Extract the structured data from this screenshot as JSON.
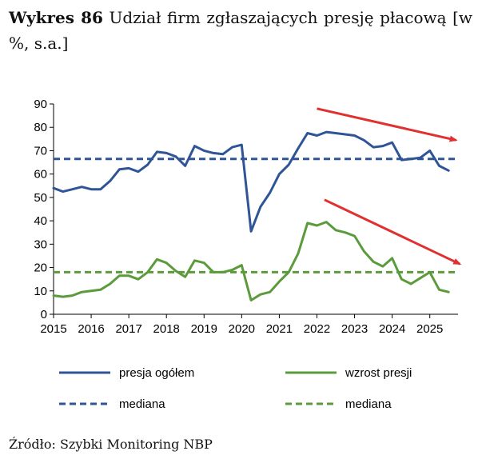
{
  "title": {
    "label": "Wykres 86",
    "text": "Udział firm zgłaszających presję płacową [w %, s.a.]"
  },
  "source": "Źródło: Szybki Monitoring NBP",
  "colors": {
    "blue": "#2f5597",
    "green": "#5b9b3c",
    "arrow": "#e03030"
  },
  "chart_data": {
    "type": "line",
    "xlim": [
      2015,
      2025.75
    ],
    "ylim": [
      0,
      90
    ],
    "x_ticks": [
      "2015",
      "2016",
      "2017",
      "2018",
      "2019",
      "2020",
      "2021",
      "2022",
      "2023",
      "2024",
      "2025"
    ],
    "y_ticks": [
      "0",
      "10",
      "20",
      "30",
      "40",
      "50",
      "60",
      "70",
      "80",
      "90"
    ],
    "series": [
      {
        "name": "presja ogółem",
        "color": "#2f5597",
        "style": "solid",
        "x": [
          2015.0,
          2015.25,
          2015.5,
          2015.75,
          2016.0,
          2016.25,
          2016.5,
          2016.75,
          2017.0,
          2017.25,
          2017.5,
          2017.75,
          2018.0,
          2018.25,
          2018.5,
          2018.75,
          2019.0,
          2019.25,
          2019.5,
          2019.75,
          2020.0,
          2020.25,
          2020.5,
          2020.75,
          2021.0,
          2021.25,
          2021.5,
          2021.75,
          2022.0,
          2022.25,
          2022.5,
          2022.75,
          2023.0,
          2023.25,
          2023.5,
          2023.75,
          2024.0,
          2024.25,
          2024.5,
          2024.75,
          2025.0,
          2025.25,
          2025.5
        ],
        "values": [
          54,
          52.5,
          53.5,
          54.5,
          53.5,
          53.5,
          57,
          62,
          62.5,
          61,
          64,
          69.5,
          69,
          67.5,
          63.5,
          72,
          70,
          69,
          68.5,
          71.5,
          72.5,
          35.5,
          46,
          52,
          60,
          64,
          71,
          77.5,
          76.5,
          78,
          77.5,
          77,
          76.5,
          74.5,
          71.5,
          72,
          73.5,
          66,
          66.5,
          67,
          70,
          63.5,
          61.5
        ]
      },
      {
        "name": "wzrost presji",
        "color": "#5b9b3c",
        "style": "solid",
        "x": [
          2015.0,
          2015.25,
          2015.5,
          2015.75,
          2016.0,
          2016.25,
          2016.5,
          2016.75,
          2017.0,
          2017.25,
          2017.5,
          2017.75,
          2018.0,
          2018.25,
          2018.5,
          2018.75,
          2019.0,
          2019.25,
          2019.5,
          2019.75,
          2020.0,
          2020.25,
          2020.5,
          2020.75,
          2021.0,
          2021.25,
          2021.5,
          2021.75,
          2022.0,
          2022.25,
          2022.5,
          2022.75,
          2023.0,
          2023.25,
          2023.5,
          2023.75,
          2024.0,
          2024.25,
          2024.5,
          2024.75,
          2025.0,
          2025.25,
          2025.5
        ],
        "values": [
          8,
          7.5,
          8,
          9.5,
          10,
          10.5,
          13,
          16.5,
          16.5,
          15,
          18,
          23.5,
          22,
          18.5,
          16,
          23,
          22,
          18,
          18,
          19,
          21,
          6,
          8.5,
          9.5,
          14,
          18,
          26,
          39,
          38,
          39.5,
          36,
          35,
          33.5,
          27,
          22.5,
          20.5,
          24,
          15,
          13,
          15.5,
          18,
          10.5,
          9.5
        ]
      },
      {
        "name": "mediana",
        "color": "#2f5597",
        "style": "dashed",
        "x": [
          2015,
          2025.75
        ],
        "values": [
          66.5,
          66.5
        ]
      },
      {
        "name": "mediana",
        "color": "#5b9b3c",
        "style": "dashed",
        "x": [
          2015,
          2025.75
        ],
        "values": [
          18,
          18
        ]
      }
    ],
    "annotations": [
      {
        "type": "arrow",
        "color": "#e03030",
        "x": [
          2022.0,
          2025.7
        ],
        "values": [
          88,
          74.5
        ]
      },
      {
        "type": "arrow",
        "color": "#e03030",
        "x": [
          2022.2,
          2025.8
        ],
        "values": [
          49,
          21.5
        ]
      }
    ],
    "legend": {
      "placement": "bottom",
      "entries": [
        {
          "label": "presja ogółem",
          "color": "#2f5597",
          "style": "solid"
        },
        {
          "label": "wzrost presji",
          "color": "#5b9b3c",
          "style": "solid"
        },
        {
          "label": "mediana",
          "color": "#2f5597",
          "style": "dashed"
        },
        {
          "label": "mediana",
          "color": "#5b9b3c",
          "style": "dashed"
        }
      ]
    }
  }
}
